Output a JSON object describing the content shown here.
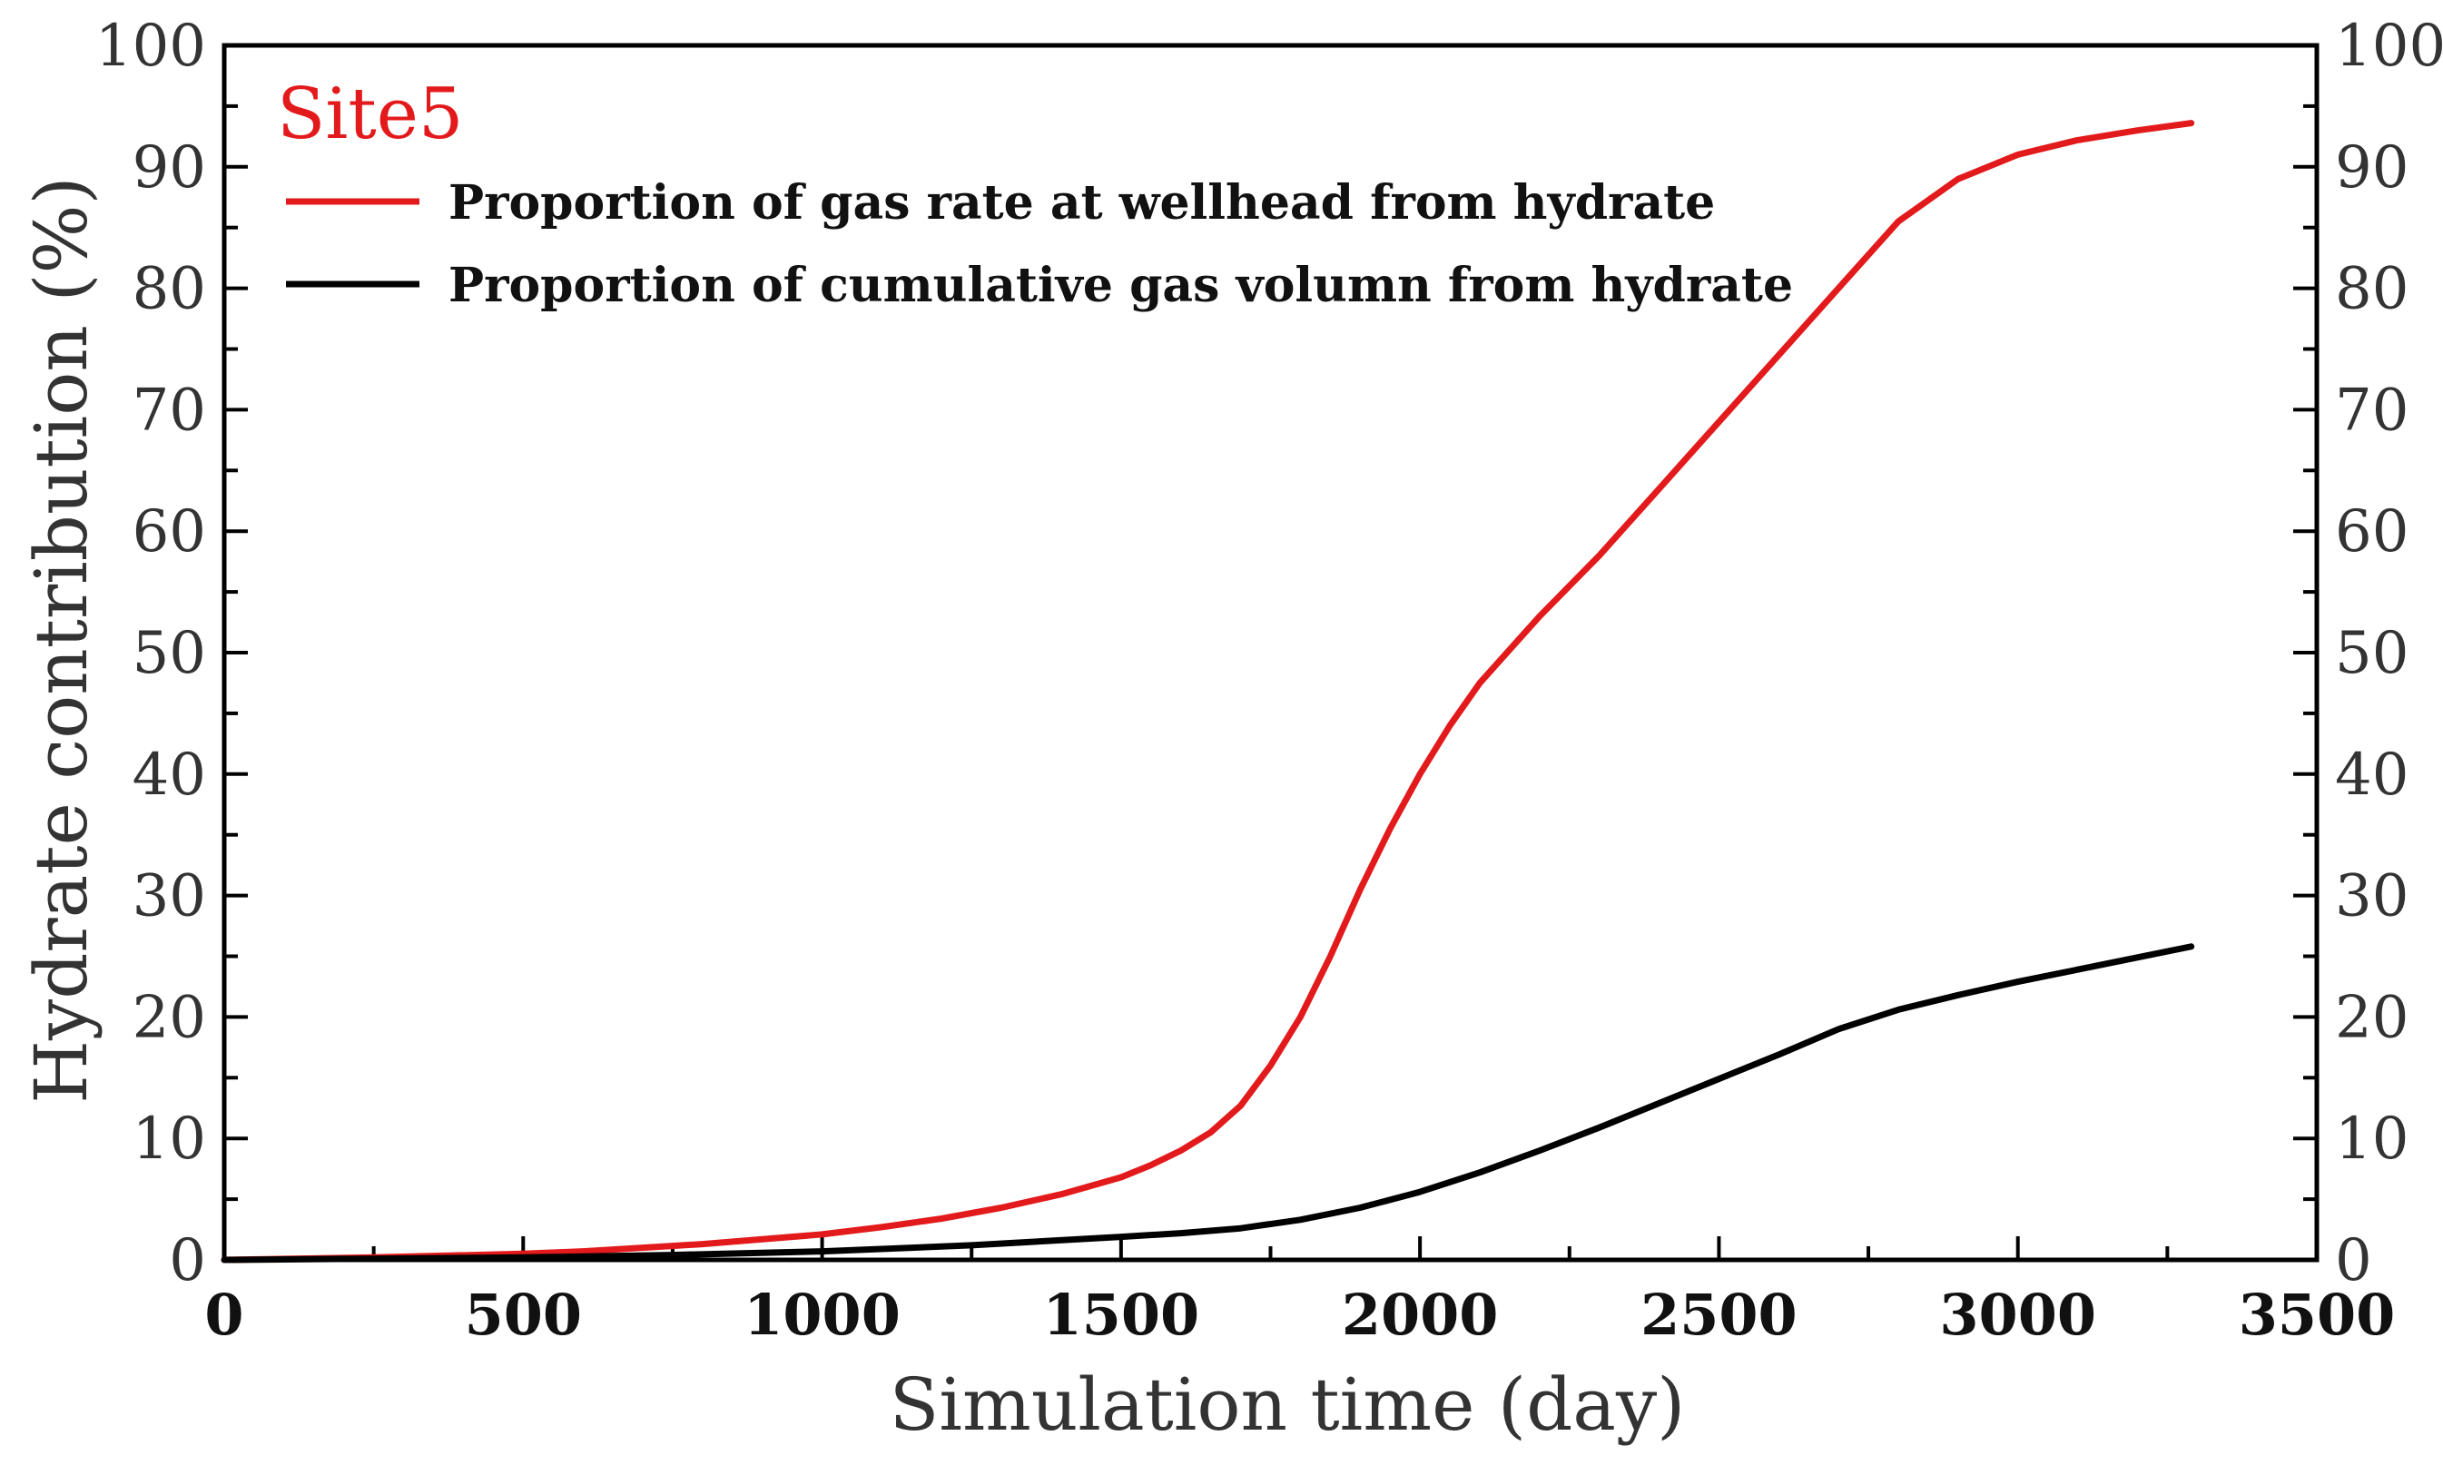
{
  "chart_data": {
    "type": "line",
    "panel_label": "Site5",
    "xlabel": "Simulation time (day)",
    "ylabel": "Hydrate contribution (%)",
    "xlim": [
      0,
      3500
    ],
    "ylim": [
      0,
      100
    ],
    "x_ticks": [
      0,
      500,
      1000,
      1500,
      2000,
      2500,
      3000,
      3500
    ],
    "y_ticks": [
      0,
      10,
      20,
      30,
      40,
      50,
      60,
      70,
      80,
      90,
      100
    ],
    "x_minor_step": 250,
    "y_minor_step": 5,
    "right_axis_mirrored": true,
    "grid": false,
    "legend_position": "top-left",
    "colors": {
      "panel_label": "#e31a1c",
      "axis": "#000000"
    },
    "series": [
      {
        "name": "Proportion of gas rate at wellhead from hydrate",
        "color": "#e31a1c",
        "x": [
          0,
          250,
          500,
          600,
          700,
          800,
          900,
          1000,
          1100,
          1200,
          1300,
          1400,
          1500,
          1550,
          1600,
          1650,
          1700,
          1750,
          1800,
          1850,
          1900,
          1950,
          2000,
          2050,
          2100,
          2200,
          2300,
          2400,
          2500,
          2600,
          2700,
          2800,
          2900,
          3000,
          3100,
          3200,
          3290
        ],
        "y": [
          0,
          0.2,
          0.5,
          0.7,
          1.0,
          1.3,
          1.7,
          2.1,
          2.7,
          3.4,
          4.3,
          5.4,
          6.8,
          7.8,
          9.0,
          10.5,
          12.7,
          16.0,
          20.0,
          25.0,
          30.5,
          35.5,
          40.0,
          44.0,
          47.5,
          53.0,
          58.0,
          63.5,
          69.0,
          74.5,
          80.0,
          85.5,
          89.0,
          91.0,
          92.2,
          93.0,
          93.6
        ]
      },
      {
        "name": "Proportion of cumulative gas volumn from hydrate",
        "color": "#000000",
        "x": [
          0,
          250,
          500,
          750,
          1000,
          1250,
          1500,
          1600,
          1700,
          1800,
          1900,
          2000,
          2100,
          2200,
          2300,
          2400,
          2500,
          2600,
          2700,
          2800,
          2900,
          3000,
          3100,
          3200,
          3290
        ],
        "y": [
          0,
          0.1,
          0.2,
          0.4,
          0.7,
          1.2,
          1.9,
          2.2,
          2.6,
          3.3,
          4.3,
          5.6,
          7.2,
          9.0,
          10.9,
          12.9,
          14.9,
          16.9,
          19.0,
          20.6,
          21.8,
          22.9,
          23.9,
          24.9,
          25.8
        ]
      }
    ]
  }
}
